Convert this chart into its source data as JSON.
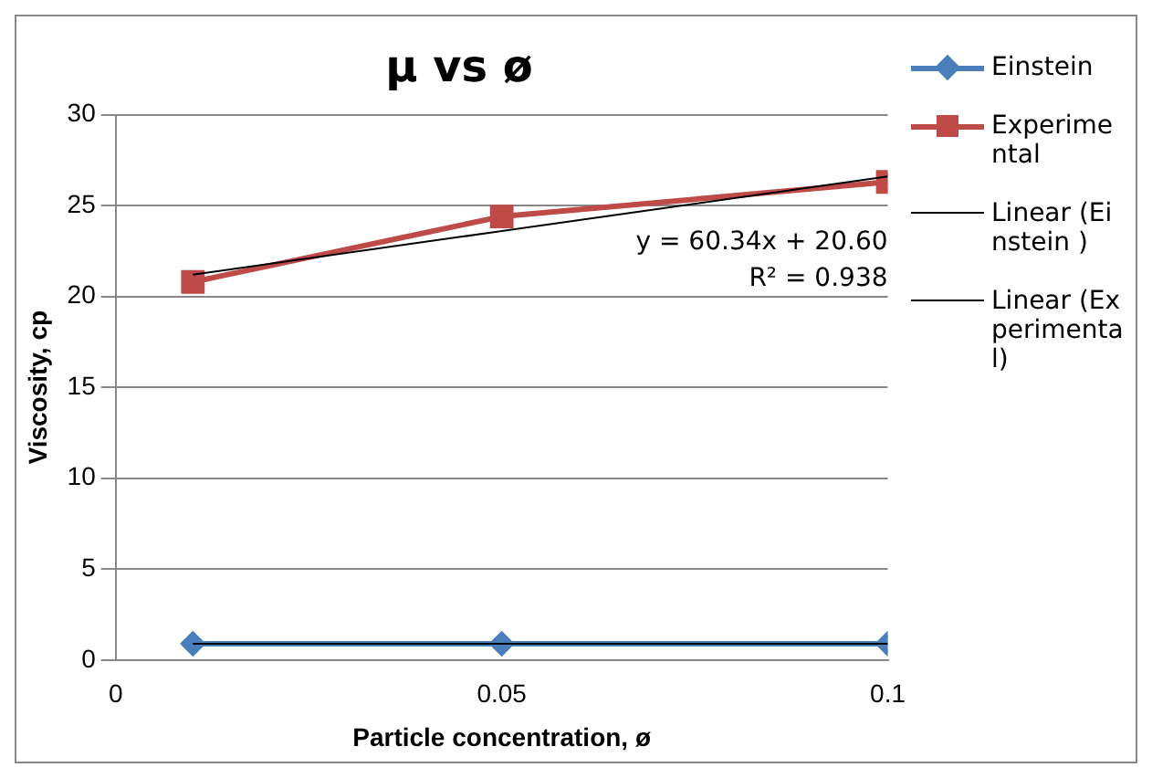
{
  "chart_data": {
    "type": "line",
    "title": "μ vs ø",
    "xlabel": "Particle concentration, ø",
    "ylabel": "Viscosity, cp",
    "xlim": [
      0,
      0.1
    ],
    "xticks": [
      0,
      0.05,
      0.1
    ],
    "ylim": [
      0,
      30
    ],
    "yticks": [
      0,
      5,
      10,
      15,
      20,
      25,
      30
    ],
    "grid": "y",
    "legend": "right",
    "annotations": [
      "y = 60.34x + 20.60",
      "R² = 0.938"
    ],
    "series": [
      {
        "name": "Einstein",
        "color": "#4a7ebb",
        "x": [
          0.01,
          0.05,
          0.1
        ],
        "values": [
          0.9,
          0.9,
          0.9
        ],
        "marker": "diamond"
      },
      {
        "name": "Experimental",
        "color": "#be4b48",
        "x": [
          0.01,
          0.05,
          0.1
        ],
        "values": [
          20.8,
          24.4,
          26.3
        ],
        "marker": "square"
      },
      {
        "name": "Linear (Einstein )",
        "color": "#000000",
        "x": [
          0.01,
          0.1
        ],
        "values": [
          0.9,
          0.9
        ],
        "marker": "none"
      },
      {
        "name": "Linear (Experimental)",
        "color": "#000000",
        "x": [
          0.01,
          0.1
        ],
        "values": [
          21.2,
          26.6
        ],
        "marker": "none"
      }
    ]
  }
}
